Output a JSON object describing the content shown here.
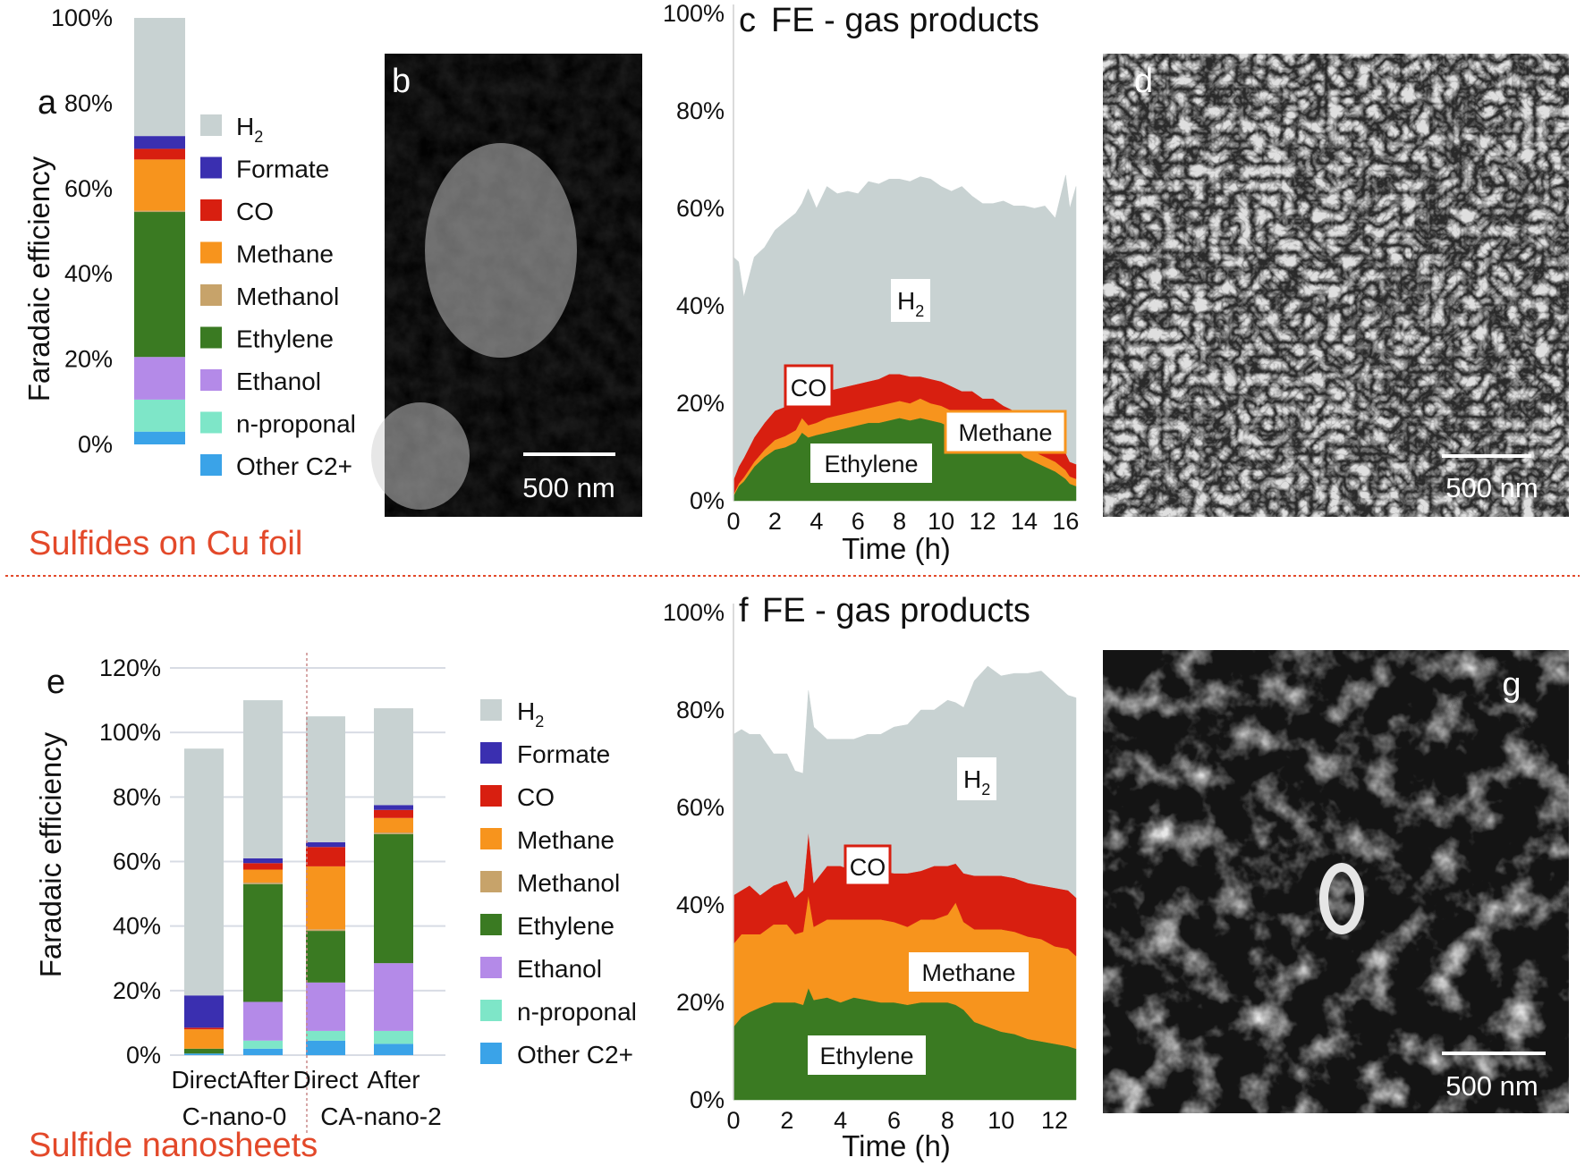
{
  "colors": {
    "H2": "#c8d2d2",
    "Formate": "#3a2fb0",
    "CO": "#d81f10",
    "Methane": "#f7941d",
    "Methanol": "#c7a36a",
    "Ethylene": "#3a7a22",
    "Ethanol": "#b48ae8",
    "n-proponal": "#7ee6c8",
    "Other C2+": "#3aa3e8",
    "section": "#e3492a",
    "divider": "#e3492a"
  },
  "sections": {
    "top": "Sulfides on Cu foil",
    "bottom": "Sulfide nanosheets"
  },
  "panels": {
    "a": "a",
    "b": "b",
    "c": "c",
    "d": "d",
    "e": "e",
    "f": "f",
    "g": "g"
  },
  "images": {
    "b": {
      "scale_label": "500 nm"
    },
    "d": {
      "scale_label": "500 nm"
    },
    "g": {
      "scale_label": "500 nm"
    }
  },
  "legend_a": [
    {
      "base": "H",
      "sub": "2",
      "key": "H2"
    },
    {
      "base": "Formate",
      "sub": "",
      "key": "Formate"
    },
    {
      "base": "CO",
      "sub": "",
      "key": "CO"
    },
    {
      "base": "Methane",
      "sub": "",
      "key": "Methane"
    },
    {
      "base": "Methanol",
      "sub": "",
      "key": "Methanol"
    },
    {
      "base": "Ethylene",
      "sub": "",
      "key": "Ethylene"
    },
    {
      "base": "Ethanol",
      "sub": "",
      "key": "Ethanol"
    },
    {
      "base": "n-proponal",
      "sub": "",
      "key": "n-proponal"
    },
    {
      "base": "Other C2+",
      "sub": "",
      "key": "Other C2+"
    }
  ],
  "chart_data": [
    {
      "panel": "a",
      "type": "bar",
      "stacked": true,
      "ylabel": "Faradaic efficiency",
      "ylim": [
        0,
        100
      ],
      "yticks": [
        "0%",
        "20%",
        "40%",
        "60%",
        "80%",
        "100%"
      ],
      "categories": [
        ""
      ],
      "series": [
        {
          "name": "Other C2+",
          "values": [
            3
          ]
        },
        {
          "name": "n-proponal",
          "values": [
            7.5
          ]
        },
        {
          "name": "Ethanol",
          "values": [
            10
          ]
        },
        {
          "name": "Ethylene",
          "values": [
            34
          ]
        },
        {
          "name": "Methanol",
          "values": [
            0.3
          ]
        },
        {
          "name": "Methane",
          "values": [
            12
          ]
        },
        {
          "name": "CO",
          "values": [
            2.5
          ]
        },
        {
          "name": "Formate",
          "values": [
            3
          ]
        },
        {
          "name": "H2",
          "values": [
            27.7
          ]
        }
      ]
    },
    {
      "panel": "c",
      "type": "area",
      "stacked": true,
      "title": "FE - gas products",
      "xlabel": "Time (h)",
      "xlim": [
        0,
        16.5
      ],
      "xticks": [
        "0",
        "2",
        "4",
        "6",
        "8",
        "10",
        "12",
        "14",
        "16"
      ],
      "ylim": [
        0,
        100
      ],
      "yticks": [
        "0%",
        "20%",
        "40%",
        "60%",
        "80%",
        "100%"
      ],
      "x": [
        0,
        0.25,
        0.5,
        1,
        1.5,
        2,
        2.5,
        3,
        3.3,
        3.6,
        4,
        4.5,
        5,
        5.5,
        6,
        6.5,
        7,
        7.5,
        8,
        8.5,
        9,
        9.5,
        10,
        10.5,
        11,
        11.5,
        12,
        12.5,
        13,
        13.5,
        14,
        14.5,
        15,
        15.5,
        16,
        16.2,
        16.5
      ],
      "series": [
        {
          "name": "Ethylene",
          "values": [
            1,
            3,
            4,
            7,
            9,
            10.5,
            11,
            12,
            14,
            13,
            13.5,
            14,
            14.5,
            15,
            15.5,
            16,
            16,
            16.5,
            17,
            16.5,
            17,
            16.5,
            16,
            15,
            14,
            14,
            13,
            13,
            12,
            11,
            9,
            8,
            7,
            6,
            4.5,
            3.5,
            3
          ]
        },
        {
          "name": "Methane",
          "values": [
            0.3,
            0.5,
            0.8,
            1,
            1.5,
            2,
            2.3,
            2.5,
            3,
            2.5,
            2.5,
            3,
            3,
            3,
            3,
            3,
            3.5,
            3.5,
            3.5,
            3.5,
            4,
            3.5,
            3.5,
            3.5,
            3,
            3,
            3,
            3,
            2.5,
            2.5,
            2.5,
            2,
            2,
            2,
            1.8,
            1.5,
            1.5
          ]
        },
        {
          "name": "CO",
          "values": [
            3,
            3.5,
            4,
            5,
            5.5,
            6,
            6,
            5.5,
            5,
            5.5,
            6,
            5.5,
            5.5,
            5.5,
            5.5,
            5.5,
            5.5,
            6,
            5.5,
            5.5,
            4.5,
            5,
            5,
            5,
            5.5,
            5.5,
            5,
            5,
            5,
            5,
            5,
            5,
            4.5,
            4,
            3.5,
            3,
            3
          ]
        },
        {
          "name": "H2",
          "values": [
            45.7,
            42,
            33,
            37,
            36,
            37,
            38,
            39,
            39,
            43,
            38,
            42,
            40,
            40,
            39,
            41,
            40,
            40,
            40,
            40,
            41,
            41,
            40,
            40,
            42,
            40,
            40,
            40,
            42,
            42,
            44,
            45,
            47,
            46,
            57,
            52,
            57
          ]
        }
      ],
      "annotations": [
        {
          "text": "H2",
          "style": "white-box"
        },
        {
          "text": "CO",
          "style": "red-border"
        },
        {
          "text": "Methane",
          "style": "orange-border"
        },
        {
          "text": "Ethylene",
          "style": "white-box"
        }
      ]
    },
    {
      "panel": "e",
      "type": "bar",
      "stacked": true,
      "ylabel": "Faradaic efficiency",
      "ylim": [
        0,
        120
      ],
      "yticks": [
        "0%",
        "20%",
        "40%",
        "60%",
        "80%",
        "100%",
        "120%"
      ],
      "categories": [
        "Direct",
        "After",
        "Direct",
        "After"
      ],
      "groups": [
        "C-nano-0",
        "CA-nano-2"
      ],
      "series": [
        {
          "name": "Other C2+",
          "values": [
            0.5,
            2,
            4.5,
            3.5
          ]
        },
        {
          "name": "n-proponal",
          "values": [
            0,
            2.5,
            3,
            4
          ]
        },
        {
          "name": "Ethanol",
          "values": [
            0,
            12,
            15,
            21
          ]
        },
        {
          "name": "Ethylene",
          "values": [
            1.5,
            36.5,
            16,
            40
          ]
        },
        {
          "name": "Methanol",
          "values": [
            0,
            0.5,
            0.5,
            0.5
          ]
        },
        {
          "name": "Methane",
          "values": [
            6,
            4,
            19.5,
            4.5
          ]
        },
        {
          "name": "CO",
          "values": [
            0.5,
            2,
            6,
            2.5
          ]
        },
        {
          "name": "Formate",
          "values": [
            10,
            1.5,
            1.5,
            1.5
          ]
        },
        {
          "name": "H2",
          "values": [
            76.5,
            49,
            39,
            30
          ]
        }
      ]
    },
    {
      "panel": "f",
      "type": "area",
      "stacked": true,
      "title": "FE - gas products",
      "xlabel": "Time (h)",
      "xlim": [
        0,
        12.8
      ],
      "xticks": [
        "0",
        "2",
        "4",
        "6",
        "8",
        "10",
        "12"
      ],
      "ylim": [
        0,
        100
      ],
      "yticks": [
        "0%",
        "20%",
        "40%",
        "60%",
        "80%",
        "100%"
      ],
      "x": [
        0,
        0.3,
        0.6,
        1,
        1.5,
        2,
        2.3,
        2.6,
        2.8,
        3,
        3.5,
        4,
        4.5,
        5,
        5.5,
        6,
        6.5,
        7,
        7.5,
        8,
        8.3,
        8.6,
        9,
        9.5,
        10,
        10.5,
        11,
        11.5,
        12,
        12.5,
        12.8
      ],
      "series": [
        {
          "name": "Ethylene",
          "values": [
            15,
            17,
            18,
            19,
            20,
            20,
            20,
            19.5,
            23,
            20.5,
            21,
            20,
            21,
            20.5,
            20,
            20,
            19.5,
            20,
            20,
            20,
            19.5,
            18.5,
            16,
            15,
            14,
            13.5,
            12.5,
            12,
            11.5,
            11,
            10.5
          ]
        },
        {
          "name": "Methane",
          "values": [
            17,
            17,
            16,
            15,
            16,
            16,
            14,
            15,
            19,
            15,
            16,
            17,
            16,
            16.5,
            17,
            16.5,
            16,
            17,
            17,
            18,
            21,
            18,
            19,
            20,
            21,
            21,
            21,
            21,
            20,
            20,
            19
          ]
        },
        {
          "name": "CO",
          "values": [
            10,
            9,
            10,
            8,
            8,
            9,
            7.5,
            8.5,
            13,
            9,
            11,
            11,
            10,
            10,
            10,
            10,
            11,
            10,
            11,
            10,
            8,
            10,
            11,
            11,
            11,
            11,
            11,
            11,
            12,
            12,
            12
          ]
        },
        {
          "name": "H2",
          "values": [
            33,
            33,
            31,
            33,
            27,
            26,
            26,
            24,
            29,
            32,
            26,
            26,
            27,
            28,
            28,
            30,
            30.5,
            33,
            32,
            34,
            33,
            34,
            40,
            43,
            41,
            42,
            43,
            44,
            42,
            40,
            41
          ]
        }
      ],
      "annotations": [
        {
          "text": "H2",
          "style": "white-box"
        },
        {
          "text": "CO",
          "style": "red-border"
        },
        {
          "text": "Methane",
          "style": "white-box"
        },
        {
          "text": "Ethylene",
          "style": "white-box"
        }
      ]
    }
  ]
}
